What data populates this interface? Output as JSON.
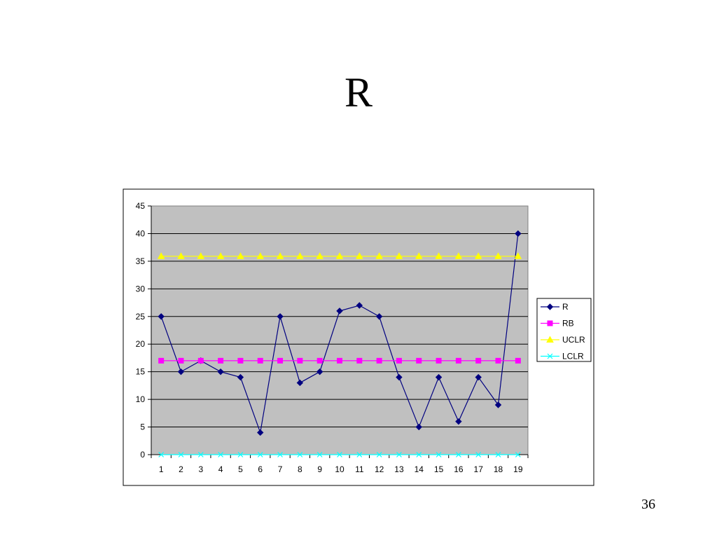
{
  "slide": {
    "title": "R",
    "page_number": "36"
  },
  "chart_data": {
    "type": "line",
    "title": "",
    "xlabel": "",
    "ylabel": "",
    "categories": [
      "1",
      "2",
      "3",
      "4",
      "5",
      "6",
      "7",
      "8",
      "9",
      "10",
      "11",
      "12",
      "13",
      "14",
      "15",
      "16",
      "17",
      "18",
      "19"
    ],
    "ylim": [
      0,
      45
    ],
    "yticks": [
      0,
      5,
      10,
      15,
      20,
      25,
      30,
      35,
      40,
      45
    ],
    "grid": true,
    "legend_position": "right",
    "plot_background": "#c0c0c0",
    "series": [
      {
        "name": "R",
        "color": "#000080",
        "marker": "diamond",
        "values": [
          25,
          15,
          17,
          15,
          14,
          4,
          25,
          13,
          15,
          26,
          27,
          25,
          14,
          5,
          14,
          6,
          14,
          9,
          40
        ]
      },
      {
        "name": "RB",
        "color": "#ff00ff",
        "marker": "square",
        "values": [
          17,
          17,
          17,
          17,
          17,
          17,
          17,
          17,
          17,
          17,
          17,
          17,
          17,
          17,
          17,
          17,
          17,
          17,
          17
        ]
      },
      {
        "name": "UCLR",
        "color": "#ffff00",
        "marker": "triangle",
        "values": [
          35.9,
          35.9,
          35.9,
          35.9,
          35.9,
          35.9,
          35.9,
          35.9,
          35.9,
          35.9,
          35.9,
          35.9,
          35.9,
          35.9,
          35.9,
          35.9,
          35.9,
          35.9,
          35.9
        ]
      },
      {
        "name": "LCLR",
        "color": "#00ffff",
        "marker": "x",
        "values": [
          0,
          0,
          0,
          0,
          0,
          0,
          0,
          0,
          0,
          0,
          0,
          0,
          0,
          0,
          0,
          0,
          0,
          0,
          0
        ]
      }
    ]
  }
}
